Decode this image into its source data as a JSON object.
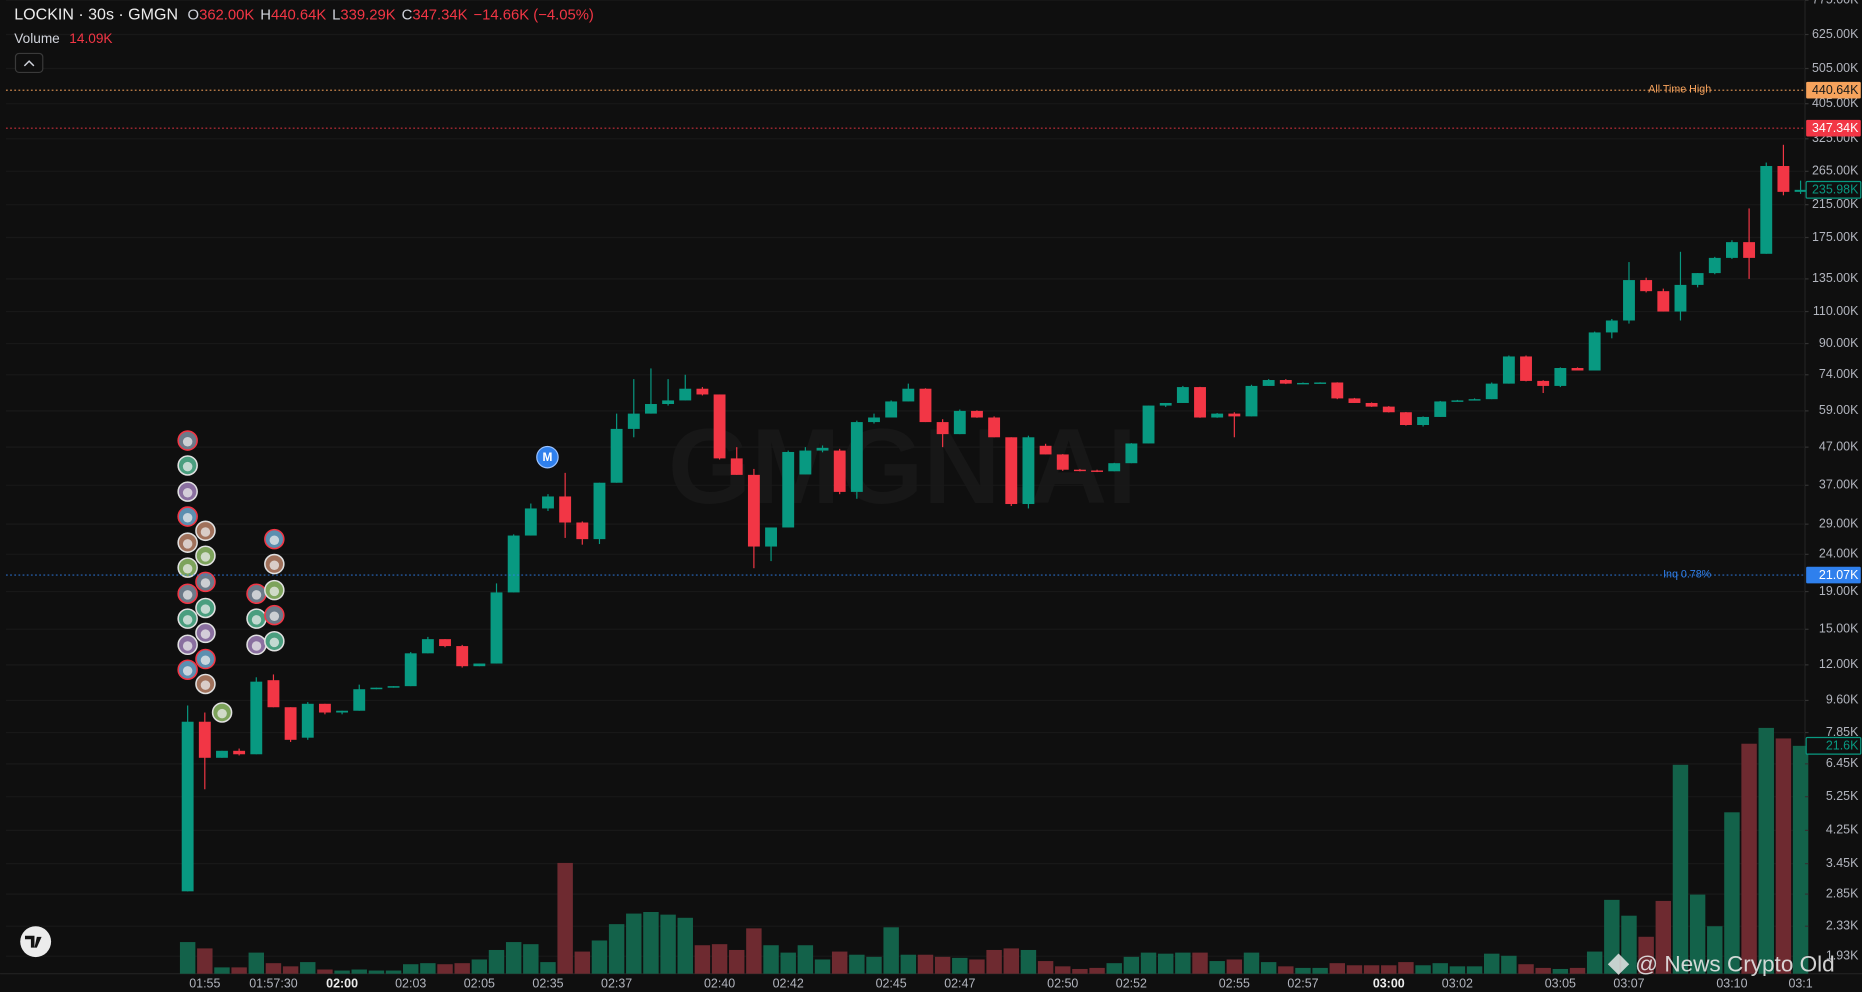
{
  "chart_data": {
    "type": "candlestick",
    "title": "LOCKIN · 30s · GMGN",
    "ohlc_labels": [
      {
        "key": "O",
        "text": "362.00K"
      },
      {
        "key": "H",
        "text": "440.64K"
      },
      {
        "key": "L",
        "text": "339.29K"
      },
      {
        "key": "C",
        "text": "347.34K"
      }
    ],
    "change_label": "−14.66K (−4.05%)",
    "volume_title": "Volume",
    "volume_value": "14.09K",
    "marker_label": "M",
    "watermark": "GMGN.AI",
    "overlay_text": "@ News Crypto Old",
    "log_scale": true,
    "grid": true,
    "up_color": "#089981",
    "down_color": "#f23645",
    "volume_up_color": "#13624a",
    "volume_down_color": "#6e2a30",
    "categories": [
      null,
      "01:55",
      null,
      null,
      null,
      "01:57:30",
      null,
      null,
      null,
      "02:00",
      null,
      null,
      null,
      "02:03",
      null,
      null,
      null,
      "02:05",
      null,
      null,
      null,
      "02:35",
      null,
      null,
      null,
      "02:37",
      null,
      null,
      null,
      null,
      null,
      "02:40",
      null,
      null,
      null,
      "02:42",
      null,
      null,
      null,
      null,
      null,
      "02:45",
      null,
      null,
      null,
      "02:47",
      null,
      null,
      null,
      null,
      null,
      "02:50",
      null,
      null,
      null,
      "02:52",
      null,
      null,
      null,
      null,
      null,
      "02:55",
      null,
      null,
      null,
      "02:57",
      null,
      null,
      null,
      null,
      "03:00",
      null,
      null,
      null,
      "03:02",
      null,
      null,
      null,
      null,
      null,
      "03:05",
      null,
      null,
      null,
      "03:07",
      null,
      null,
      null,
      null,
      null,
      "03:10",
      null,
      null,
      null,
      "03:1"
    ],
    "open": [
      2900,
      8400,
      6700,
      7000,
      6850,
      10900,
      9200,
      7600,
      9400,
      8900,
      9000,
      10300,
      10400,
      10500,
      12900,
      14100,
      13500,
      11900,
      12100,
      18900,
      27000,
      32000,
      34500,
      29300,
      26400,
      37600,
      52700,
      58000,
      61600,
      63000,
      67800,
      65400,
      43800,
      39500,
      25200,
      28400,
      39600,
      46000,
      46000,
      35500,
      55000,
      56600,
      62600,
      67800,
      55000,
      51000,
      59000,
      56600,
      50000,
      32900,
      47400,
      44900,
      40800,
      40600,
      40400,
      42500,
      48100,
      61000,
      62000,
      68500,
      56600,
      58000,
      57000,
      69000,
      71600,
      70000,
      70300,
      70500,
      63800,
      62000,
      60600,
      58500,
      54000,
      56800,
      62600,
      63000,
      63500,
      70000,
      83000,
      71200,
      69000,
      77200,
      76000,
      96500,
      104000,
      134000,
      125000,
      110000,
      130000,
      140000,
      154000,
      170000,
      158000,
      274000,
      233000
    ],
    "high": [
      9300,
      8900,
      7000,
      7100,
      11100,
      11300,
      9200,
      9500,
      9400,
      9000,
      10600,
      10400,
      10500,
      13000,
      14300,
      14100,
      13600,
      12100,
      20000,
      27200,
      33000,
      35000,
      40000,
      29500,
      37600,
      58000,
      72000,
      77000,
      72000,
      74000,
      68500,
      65400,
      47000,
      41000,
      28400,
      46000,
      47000,
      47500,
      46500,
      55500,
      58000,
      63000,
      70000,
      68000,
      56000,
      59500,
      59200,
      57000,
      50000,
      50500,
      48000,
      45000,
      41000,
      40800,
      42600,
      48200,
      61000,
      62000,
      69000,
      68600,
      58200,
      58500,
      69500,
      72000,
      72000,
      70500,
      70600,
      70600,
      64000,
      62200,
      60800,
      58600,
      57000,
      62800,
      63200,
      63800,
      70500,
      83500,
      83500,
      71500,
      77500,
      77500,
      97000,
      105000,
      150000,
      136000,
      127000,
      160000,
      140000,
      155000,
      172000,
      210000,
      280000,
      313000,
      250000
    ],
    "low": [
      2900,
      5500,
      6700,
      6800,
      6850,
      9200,
      7400,
      7500,
      8800,
      8800,
      9000,
      10300,
      10400,
      10500,
      12900,
      13400,
      11800,
      11900,
      12100,
      18900,
      27000,
      31500,
      26600,
      25500,
      25600,
      37600,
      50000,
      58000,
      61000,
      63000,
      65000,
      43500,
      39500,
      22000,
      23000,
      28400,
      39600,
      45500,
      35000,
      34000,
      54500,
      56600,
      62600,
      55000,
      47000,
      51000,
      56500,
      50000,
      32500,
      32000,
      44900,
      40500,
      40400,
      40200,
      40400,
      42500,
      48100,
      60500,
      62000,
      56500,
      56500,
      50000,
      57000,
      69000,
      69800,
      70000,
      70200,
      63500,
      62000,
      60500,
      58400,
      53800,
      53500,
      56800,
      62500,
      63000,
      63500,
      70000,
      71000,
      66000,
      68500,
      76000,
      76000,
      93000,
      102000,
      124000,
      110000,
      104000,
      128000,
      139000,
      153000,
      135000,
      158000,
      228000,
      230000
    ],
    "close": [
      8400,
      6700,
      7000,
      6850,
      10800,
      9200,
      7500,
      9400,
      8900,
      9000,
      10300,
      10400,
      10500,
      12900,
      14100,
      13500,
      11900,
      12100,
      18900,
      27000,
      32000,
      34500,
      29300,
      26400,
      37600,
      52700,
      58000,
      61600,
      63000,
      67800,
      65400,
      43800,
      39500,
      25200,
      28400,
      45600,
      46000,
      46800,
      35500,
      55000,
      56600,
      62600,
      67800,
      55000,
      51000,
      59000,
      56600,
      50000,
      32900,
      50000,
      44900,
      40800,
      40600,
      40400,
      42500,
      48100,
      61000,
      62000,
      68500,
      56600,
      58000,
      57000,
      69000,
      71600,
      70000,
      70300,
      70500,
      63800,
      62000,
      60600,
      58500,
      54000,
      56800,
      62600,
      63000,
      63500,
      70000,
      83000,
      71200,
      69000,
      77200,
      76000,
      96500,
      104000,
      134000,
      125000,
      110000,
      130000,
      140000,
      154000,
      170000,
      154000,
      274000,
      233000,
      235980
    ],
    "volume": [
      3000,
      2400,
      600,
      600,
      2000,
      1000,
      700,
      1100,
      400,
      300,
      400,
      300,
      300,
      900,
      1000,
      900,
      1000,
      1350,
      2250,
      3000,
      2800,
      1100,
      10500,
      2100,
      3150,
      4700,
      5700,
      5850,
      5600,
      5300,
      2700,
      2800,
      2250,
      4300,
      2700,
      2000,
      2700,
      1350,
      2100,
      1800,
      1600,
      4400,
      1800,
      1800,
      1600,
      1500,
      1350,
      2250,
      2400,
      2250,
      1200,
      700,
      450,
      550,
      1000,
      1600,
      2000,
      1900,
      2000,
      2000,
      1200,
      1350,
      2000,
      1100,
      700,
      550,
      550,
      1000,
      800,
      800,
      800,
      1100,
      800,
      1000,
      700,
      700,
      1900,
      1700,
      900,
      550,
      450,
      550,
      2100,
      7000,
      5500,
      3500,
      6900,
      19800,
      7500,
      4500,
      15300,
      21800,
      23300,
      22300,
      21600
    ],
    "ylim": [
      1730,
      776000
    ],
    "volume_ylim": [
      0,
      26000
    ],
    "yticks": [
      {
        "value": 775000,
        "label": "775.00K"
      },
      {
        "value": 625000,
        "label": "625.00K"
      },
      {
        "value": 505000,
        "label": "505.00K"
      },
      {
        "value": 405000,
        "label": "405.00K"
      },
      {
        "value": 325000,
        "label": "325.00K"
      },
      {
        "value": 265000,
        "label": "265.00K"
      },
      {
        "value": 215000,
        "label": "215.00K"
      },
      {
        "value": 175000,
        "label": "175.00K"
      },
      {
        "value": 135000,
        "label": "135.00K"
      },
      {
        "value": 110000,
        "label": "110.00K"
      },
      {
        "value": 90000,
        "label": "90.00K"
      },
      {
        "value": 74000,
        "label": "74.00K"
      },
      {
        "value": 59000,
        "label": "59.00K"
      },
      {
        "value": 47000,
        "label": "47.00K"
      },
      {
        "value": 37000,
        "label": "37.00K"
      },
      {
        "value": 29000,
        "label": "29.00K"
      },
      {
        "value": 24000,
        "label": "24.00K"
      },
      {
        "value": 19000,
        "label": "19.00K"
      },
      {
        "value": 15000,
        "label": "15.00K"
      },
      {
        "value": 12000,
        "label": "12.00K"
      },
      {
        "value": 9600,
        "label": "9.60K"
      },
      {
        "value": 7850,
        "label": "7.85K"
      },
      {
        "value": 6450,
        "label": "6.45K"
      },
      {
        "value": 5250,
        "label": "5.25K"
      },
      {
        "value": 4250,
        "label": "4.25K"
      },
      {
        "value": 3450,
        "label": "3.45K"
      },
      {
        "value": 2850,
        "label": "2.85K"
      },
      {
        "value": 2330,
        "label": "2.33K"
      },
      {
        "value": 1930,
        "label": "1.93K"
      }
    ],
    "price_lines": [
      {
        "label": "All Time High",
        "value": 440640,
        "tag": "440.64K",
        "color": "#f7a35c"
      },
      {
        "value": 347340,
        "tag": "347.34K",
        "color": "#f23645"
      },
      {
        "label": "Inq 0.78%",
        "value": 21070,
        "tag": "21.07K",
        "color": "#2f80ed"
      }
    ],
    "last_price_tag": "235.98K",
    "volume_tag": "21.6K"
  }
}
